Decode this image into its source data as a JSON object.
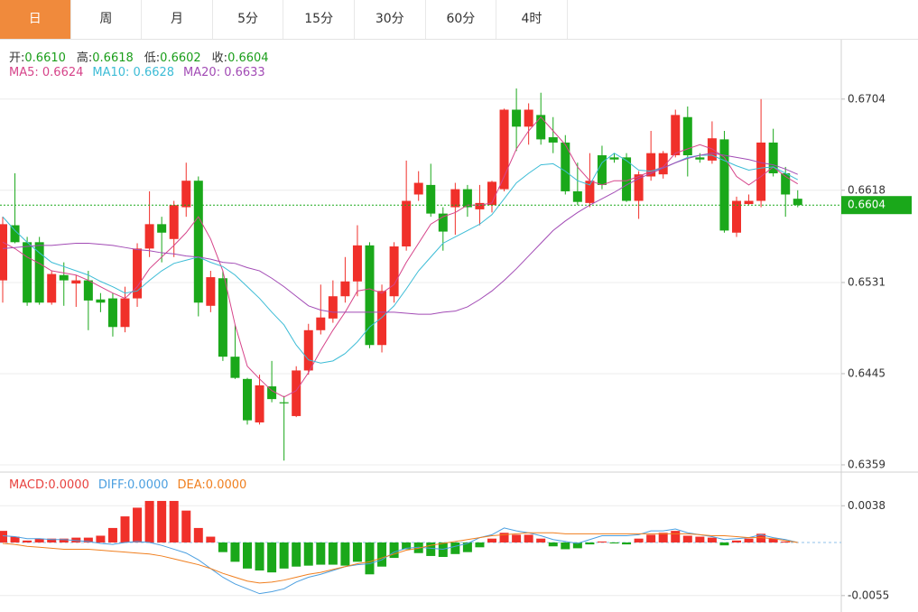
{
  "tabs": [
    "日",
    "周",
    "月",
    "5分",
    "15分",
    "30分",
    "60分",
    "4时"
  ],
  "active_tab": 0,
  "chart_data": [
    {
      "type": "candlestick",
      "readout": [
        {
          "label": "开:",
          "value": "0.6610"
        },
        {
          "label": "高:",
          "value": "0.6618"
        },
        {
          "label": "低:",
          "value": "0.6602"
        },
        {
          "label": "收:",
          "value": "0.6604"
        }
      ],
      "readout_color": "#1a9e1a",
      "up_color": "#f0302a",
      "down_color": "#1aa81a",
      "open": [
        0.6533,
        0.6585,
        0.6569,
        0.6569,
        0.6512,
        0.6538,
        0.653,
        0.6533,
        0.6515,
        0.6516,
        0.6489,
        0.6516,
        0.6563,
        0.6586,
        0.6572,
        0.6602,
        0.6627,
        0.6509,
        0.6535,
        0.6461,
        0.644,
        0.6399,
        0.6433,
        0.6418,
        0.6405,
        0.6448,
        0.6486,
        0.6497,
        0.6518,
        0.6532,
        0.6566,
        0.6472,
        0.6518,
        0.6565,
        0.6614,
        0.6623,
        0.6596,
        0.6602,
        0.6619,
        0.66,
        0.6604,
        0.6619,
        0.6694,
        0.6678,
        0.6689,
        0.6668,
        0.6663,
        0.6617,
        0.6606,
        0.6651,
        0.6649,
        0.6649,
        0.6608,
        0.6631,
        0.6633,
        0.6651,
        0.6687,
        0.6649,
        0.6646,
        0.6666,
        0.6578,
        0.6605,
        0.6608,
        0.6663,
        0.6634,
        0.661
      ],
      "high": [
        0.6593,
        0.6634,
        0.6574,
        0.6574,
        0.6542,
        0.655,
        0.6538,
        0.6542,
        0.6521,
        0.6521,
        0.6527,
        0.6568,
        0.6617,
        0.6593,
        0.6608,
        0.6644,
        0.6631,
        0.6542,
        0.6542,
        0.6491,
        0.6441,
        0.6444,
        0.6457,
        0.6424,
        0.6452,
        0.6492,
        0.6529,
        0.6533,
        0.6555,
        0.6585,
        0.6569,
        0.6529,
        0.6569,
        0.6646,
        0.6636,
        0.6643,
        0.6602,
        0.6625,
        0.6623,
        0.6623,
        0.6627,
        0.6695,
        0.6714,
        0.67,
        0.671,
        0.6687,
        0.667,
        0.6644,
        0.6653,
        0.666,
        0.6653,
        0.6653,
        0.6636,
        0.6674,
        0.6655,
        0.6694,
        0.6697,
        0.6653,
        0.6683,
        0.6674,
        0.6612,
        0.6614,
        0.6704,
        0.6676,
        0.664,
        0.6618
      ],
      "low": [
        0.6512,
        0.6568,
        0.6509,
        0.651,
        0.651,
        0.6509,
        0.6508,
        0.6486,
        0.6503,
        0.648,
        0.6484,
        0.6508,
        0.6555,
        0.655,
        0.6555,
        0.6593,
        0.6499,
        0.6503,
        0.6457,
        0.644,
        0.6397,
        0.6397,
        0.6418,
        0.6363,
        0.6404,
        0.6444,
        0.6482,
        0.6493,
        0.6512,
        0.6518,
        0.6469,
        0.6465,
        0.6512,
        0.6561,
        0.6608,
        0.6593,
        0.6561,
        0.6576,
        0.6593,
        0.6585,
        0.6597,
        0.6617,
        0.6655,
        0.6661,
        0.6661,
        0.6653,
        0.6614,
        0.6604,
        0.6602,
        0.6619,
        0.6644,
        0.6607,
        0.6591,
        0.6627,
        0.6629,
        0.6649,
        0.6631,
        0.6644,
        0.6643,
        0.6578,
        0.6574,
        0.6604,
        0.6602,
        0.6631,
        0.6593,
        0.6602
      ],
      "close": [
        0.6586,
        0.6569,
        0.6512,
        0.6512,
        0.6539,
        0.6533,
        0.6533,
        0.6514,
        0.6512,
        0.6489,
        0.6516,
        0.6563,
        0.6586,
        0.6578,
        0.6604,
        0.6627,
        0.6512,
        0.6536,
        0.6461,
        0.6441,
        0.6401,
        0.6434,
        0.6421,
        0.6417,
        0.6448,
        0.6486,
        0.6498,
        0.6518,
        0.6532,
        0.6566,
        0.6472,
        0.6523,
        0.6565,
        0.6608,
        0.6625,
        0.6596,
        0.6579,
        0.6619,
        0.6602,
        0.6606,
        0.6626,
        0.6694,
        0.6678,
        0.6694,
        0.6666,
        0.6663,
        0.6617,
        0.6607,
        0.6627,
        0.6623,
        0.6647,
        0.6608,
        0.6633,
        0.6653,
        0.6653,
        0.6689,
        0.6651,
        0.6647,
        0.6667,
        0.658,
        0.6608,
        0.6608,
        0.6663,
        0.6634,
        0.6614,
        0.6604
      ],
      "series": [
        {
          "name": "MA5: 0.6624",
          "color": "#d6448a",
          "values": [
            0.6569,
            0.6563,
            0.6555,
            0.6549,
            0.6542,
            0.654,
            0.6538,
            0.6533,
            0.6527,
            0.6521,
            0.6516,
            0.6527,
            0.6544,
            0.6555,
            0.6566,
            0.6578,
            0.6593,
            0.6572,
            0.6542,
            0.6491,
            0.6452,
            0.644,
            0.6429,
            0.6423,
            0.6429,
            0.6446,
            0.6467,
            0.6486,
            0.6503,
            0.6523,
            0.6525,
            0.6521,
            0.6529,
            0.655,
            0.6568,
            0.6586,
            0.6593,
            0.6597,
            0.6604,
            0.6604,
            0.6606,
            0.6631,
            0.6657,
            0.6674,
            0.6687,
            0.6674,
            0.6661,
            0.664,
            0.6627,
            0.6623,
            0.6627,
            0.6627,
            0.6631,
            0.6636,
            0.664,
            0.6653,
            0.6657,
            0.6661,
            0.6657,
            0.6649,
            0.6631,
            0.6623,
            0.6631,
            0.664,
            0.6631,
            0.6624
          ]
        },
        {
          "name": "MA10: 0.6628",
          "color": "#3cbcd6",
          "values": [
            0.6593,
            0.658,
            0.6569,
            0.6559,
            0.655,
            0.6546,
            0.6542,
            0.6538,
            0.6532,
            0.6527,
            0.6521,
            0.6523,
            0.6533,
            0.6542,
            0.6549,
            0.6552,
            0.6555,
            0.655,
            0.6546,
            0.6538,
            0.6527,
            0.6516,
            0.6503,
            0.6491,
            0.6472,
            0.6458,
            0.6455,
            0.6457,
            0.6464,
            0.6475,
            0.6489,
            0.6498,
            0.6509,
            0.6525,
            0.6542,
            0.6555,
            0.6568,
            0.6574,
            0.658,
            0.6586,
            0.6595,
            0.661,
            0.6625,
            0.6634,
            0.6642,
            0.6643,
            0.6636,
            0.6627,
            0.6623,
            0.6644,
            0.6653,
            0.6646,
            0.6637,
            0.6636,
            0.6639,
            0.6644,
            0.6649,
            0.6651,
            0.6651,
            0.6646,
            0.6641,
            0.6637,
            0.6639,
            0.664,
            0.6634,
            0.6628
          ]
        },
        {
          "name": "MA20: 0.6633",
          "color": "#a24bb5",
          "values": [
            0.6563,
            0.6564,
            0.6565,
            0.6566,
            0.6566,
            0.6567,
            0.6568,
            0.6568,
            0.6567,
            0.6566,
            0.6564,
            0.6562,
            0.6561,
            0.6559,
            0.6558,
            0.6556,
            0.6555,
            0.6553,
            0.655,
            0.6549,
            0.6545,
            0.6542,
            0.6535,
            0.6527,
            0.6518,
            0.6509,
            0.6505,
            0.6503,
            0.6503,
            0.6503,
            0.6503,
            0.6503,
            0.6503,
            0.6502,
            0.6501,
            0.6501,
            0.6503,
            0.6504,
            0.6508,
            0.6515,
            0.6523,
            0.6533,
            0.6544,
            0.6556,
            0.6568,
            0.658,
            0.6589,
            0.6597,
            0.6604,
            0.661,
            0.6616,
            0.6623,
            0.6629,
            0.6634,
            0.6639,
            0.6644,
            0.6648,
            0.6651,
            0.6653,
            0.6651,
            0.6649,
            0.6647,
            0.6644,
            0.6642,
            0.6638,
            0.6633
          ]
        }
      ],
      "last_price": 0.6604,
      "last_price_color": "#1aa81a",
      "ylim": [
        0.6353,
        0.676
      ],
      "yticks": [
        0.6704,
        0.6618,
        0.6531,
        0.6445,
        0.6359
      ],
      "grid": true
    },
    {
      "type": "macd",
      "up_color": "#f0302a",
      "down_color": "#1aa81a",
      "zero_line_color": "#8fc2e8",
      "series": [
        {
          "name": "MACD:0.0000",
          "color": "#e8423f",
          "values": [
            0.0012,
            0.0006,
            0.0002,
            0.0004,
            0.0004,
            0.0004,
            0.0005,
            0.0005,
            0.0007,
            0.0015,
            0.0027,
            0.0036,
            0.0043,
            0.0043,
            0.0043,
            0.0033,
            0.0015,
            0.0006,
            -0.001,
            -0.002,
            -0.0027,
            -0.0029,
            -0.0031,
            -0.0027,
            -0.0025,
            -0.0024,
            -0.0023,
            -0.0023,
            -0.0024,
            -0.002,
            -0.0033,
            -0.0025,
            -0.0016,
            -0.0007,
            -0.0011,
            -0.0014,
            -0.0015,
            -0.0012,
            -0.001,
            -0.0005,
            0.0004,
            0.001,
            0.0008,
            0.0008,
            0.0004,
            -0.0004,
            -0.0007,
            -0.0006,
            -0.0002,
            0.0001,
            -0.0001,
            -0.0002,
            0.0004,
            0.0008,
            0.001,
            0.0012,
            0.0007,
            0.0006,
            0.0005,
            -0.0003,
            0.0002,
            0.0004,
            0.0009,
            0.0004,
            0.0001,
            0
          ]
        },
        {
          "name": "DIFF:0.0000",
          "color": "#4b9fe0",
          "values": [
            0.0007,
            0.0006,
            0.0004,
            0.0004,
            0.0003,
            0.0003,
            0.0002,
            0.0001,
            -0.0001,
            -0.0002,
            0,
            0.0001,
            0,
            -0.0003,
            -0.0007,
            -0.0011,
            -0.0018,
            -0.0027,
            -0.0036,
            -0.0043,
            -0.0048,
            -0.0053,
            -0.0051,
            -0.0048,
            -0.0041,
            -0.0036,
            -0.0033,
            -0.0029,
            -0.0025,
            -0.0023,
            -0.0022,
            -0.0018,
            -0.001,
            -0.0006,
            -0.0005,
            -0.0006,
            -0.0007,
            -0.0004,
            -0.0001,
            0.0005,
            0.0008,
            0.0015,
            0.0012,
            0.001,
            0.0007,
            0.0003,
            0.0001,
            -0.0001,
            0.0003,
            0.0007,
            0.0007,
            0.0007,
            0.0008,
            0.0012,
            0.0012,
            0.0014,
            0.001,
            0.0008,
            0.0006,
            0.0003,
            0.0004,
            0.0005,
            0.0008,
            0.0005,
            0.0003,
            0
          ]
        },
        {
          "name": "DEA:0.0000",
          "color": "#f07f1f",
          "values": [
            -0.0001,
            -0.0002,
            -0.0004,
            -0.0005,
            -0.0006,
            -0.0007,
            -0.0007,
            -0.0007,
            -0.0008,
            -0.0009,
            -0.001,
            -0.0011,
            -0.0012,
            -0.0014,
            -0.0017,
            -0.002,
            -0.0023,
            -0.0027,
            -0.0032,
            -0.0036,
            -0.004,
            -0.0042,
            -0.0041,
            -0.0039,
            -0.0036,
            -0.0033,
            -0.0031,
            -0.0028,
            -0.0025,
            -0.0022,
            -0.002,
            -0.0016,
            -0.0012,
            -0.0008,
            -0.0006,
            -0.0003,
            -0.0001,
            0.0001,
            0.0003,
            0.0005,
            0.0007,
            0.0008,
            0.0009,
            0.001,
            0.001,
            0.001,
            0.0009,
            0.0009,
            0.0009,
            0.0009,
            0.0009,
            0.0009,
            0.0009,
            0.0009,
            0.0009,
            0.0009,
            0.0009,
            0.0008,
            0.0007,
            0.0007,
            0.0006,
            0.0005,
            0.0005,
            0.0004,
            0.0002,
            0
          ]
        }
      ],
      "ylim": [
        -0.0072,
        0.0071
      ],
      "yticks": [
        0.0038,
        -0.0055
      ],
      "grid": true
    }
  ]
}
